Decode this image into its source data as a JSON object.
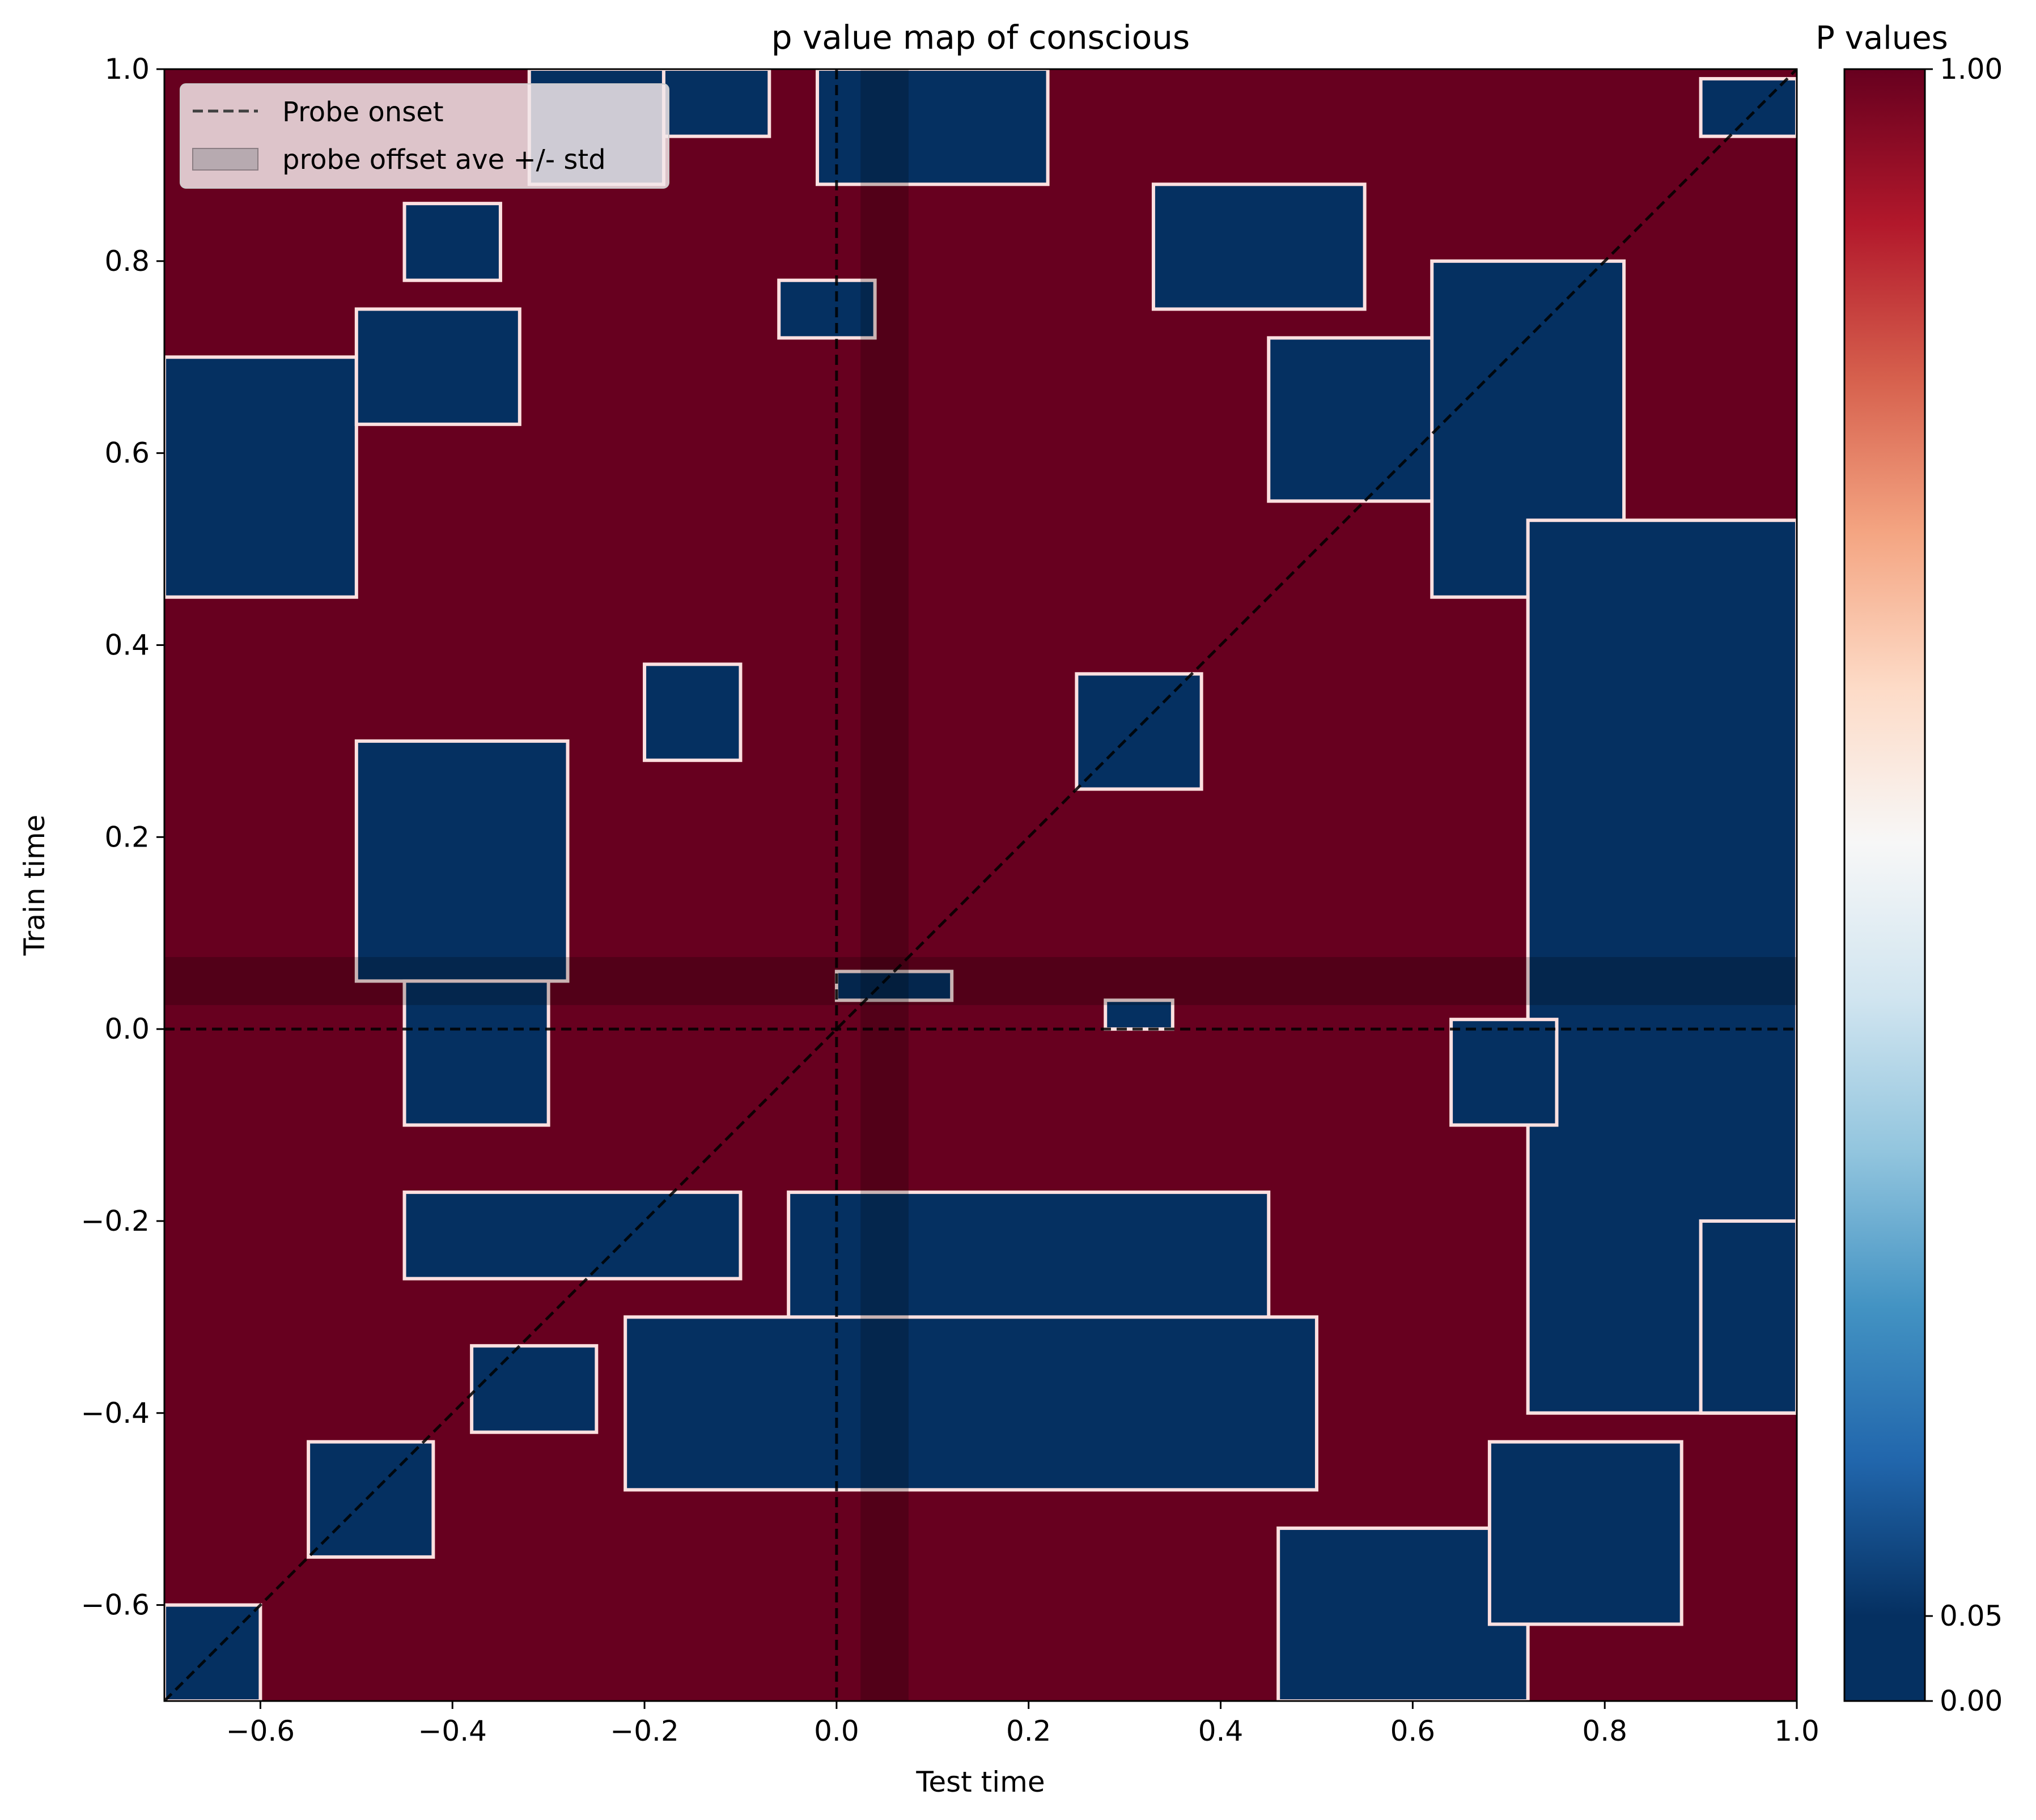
{
  "chart_data": {
    "type": "heatmap",
    "title": "p value map of conscious",
    "xlabel": "Test time",
    "ylabel": "Train time",
    "xlim": [
      -0.7,
      1.0
    ],
    "ylim": [
      -0.7,
      1.0
    ],
    "x_ticks": [
      -0.6,
      -0.4,
      -0.2,
      0.0,
      0.2,
      0.4,
      0.6,
      0.8,
      1.0
    ],
    "x_tick_labels": [
      "−0.6",
      "−0.4",
      "−0.2",
      "0.0",
      "0.2",
      "0.4",
      "0.6",
      "0.8",
      "1.0"
    ],
    "y_ticks": [
      -0.6,
      -0.4,
      -0.2,
      0.0,
      0.2,
      0.4,
      0.6,
      0.8,
      1.0
    ],
    "y_tick_labels": [
      "−0.6",
      "−0.4",
      "−0.2",
      "0.0",
      "0.2",
      "0.4",
      "0.6",
      "0.8",
      "1.0"
    ],
    "colormap": "RdBu_r",
    "colorbar": {
      "label": "P values",
      "range": [
        0.0,
        1.0
      ],
      "ticks": [
        0.0,
        0.05,
        1.0
      ],
      "tick_labels": [
        "0.00",
        "0.05",
        "1.00"
      ]
    },
    "background_value": 1.0,
    "significant_value": 0.0,
    "significance_threshold": 0.05,
    "probe_onset": 0.0,
    "probe_offset_band": [
      0.025,
      0.075
    ],
    "diagonal": true,
    "significant_regions": [
      {
        "x": [
          -0.7,
          -0.5
        ],
        "y": [
          0.45,
          0.7
        ]
      },
      {
        "x": [
          -0.5,
          -0.33
        ],
        "y": [
          0.63,
          0.75
        ]
      },
      {
        "x": [
          -0.45,
          -0.35
        ],
        "y": [
          0.78,
          0.86
        ]
      },
      {
        "x": [
          -0.32,
          -0.18
        ],
        "y": [
          0.88,
          1.0
        ]
      },
      {
        "x": [
          -0.18,
          -0.07
        ],
        "y": [
          0.93,
          1.0
        ]
      },
      {
        "x": [
          -0.06,
          0.04
        ],
        "y": [
          0.72,
          0.78
        ]
      },
      {
        "x": [
          -0.02,
          0.22
        ],
        "y": [
          0.88,
          1.0
        ]
      },
      {
        "x": [
          0.33,
          0.55
        ],
        "y": [
          0.75,
          0.88
        ]
      },
      {
        "x": [
          0.45,
          0.72
        ],
        "y": [
          0.55,
          0.72
        ]
      },
      {
        "x": [
          0.62,
          0.82
        ],
        "y": [
          0.45,
          0.8
        ]
      },
      {
        "x": [
          0.72,
          1.0
        ],
        "y": [
          -0.4,
          0.53
        ]
      },
      {
        "x": [
          0.9,
          1.0
        ],
        "y": [
          0.93,
          0.99
        ]
      },
      {
        "x": [
          -0.5,
          -0.28
        ],
        "y": [
          0.05,
          0.3
        ]
      },
      {
        "x": [
          -0.45,
          -0.3
        ],
        "y": [
          -0.1,
          0.05
        ]
      },
      {
        "x": [
          -0.2,
          -0.1
        ],
        "y": [
          0.28,
          0.38
        ]
      },
      {
        "x": [
          0.25,
          0.38
        ],
        "y": [
          0.25,
          0.37
        ]
      },
      {
        "x": [
          0.0,
          0.12
        ],
        "y": [
          0.03,
          0.06
        ]
      },
      {
        "x": [
          0.28,
          0.35
        ],
        "y": [
          -0.0,
          0.03
        ]
      },
      {
        "x": [
          0.64,
          0.75
        ],
        "y": [
          -0.1,
          0.01
        ]
      },
      {
        "x": [
          -0.45,
          -0.1
        ],
        "y": [
          -0.26,
          -0.17
        ]
      },
      {
        "x": [
          -0.05,
          0.45
        ],
        "y": [
          -0.33,
          -0.17
        ]
      },
      {
        "x": [
          -0.22,
          0.5
        ],
        "y": [
          -0.48,
          -0.3
        ]
      },
      {
        "x": [
          -0.38,
          -0.25
        ],
        "y": [
          -0.42,
          -0.33
        ]
      },
      {
        "x": [
          -0.55,
          -0.42
        ],
        "y": [
          -0.55,
          -0.43
        ]
      },
      {
        "x": [
          -0.7,
          -0.6
        ],
        "y": [
          -0.7,
          -0.6
        ]
      },
      {
        "x": [
          0.46,
          0.72
        ],
        "y": [
          -0.7,
          -0.52
        ]
      },
      {
        "x": [
          0.68,
          0.88
        ],
        "y": [
          -0.62,
          -0.43
        ]
      },
      {
        "x": [
          0.9,
          1.0
        ],
        "y": [
          -0.4,
          -0.2
        ]
      }
    ],
    "legend": {
      "position": "upper-left",
      "entries": [
        {
          "label": "Probe onset",
          "style": "dashed-line"
        },
        {
          "label": "probe offset ave +/- std",
          "style": "gray-patch"
        }
      ]
    }
  },
  "colors": {
    "high": "#67001f",
    "low": "#053061",
    "contour": "#fde0e0",
    "band": "#000000",
    "legend_line": "#404040",
    "legend_patch": "#b7aab0"
  }
}
